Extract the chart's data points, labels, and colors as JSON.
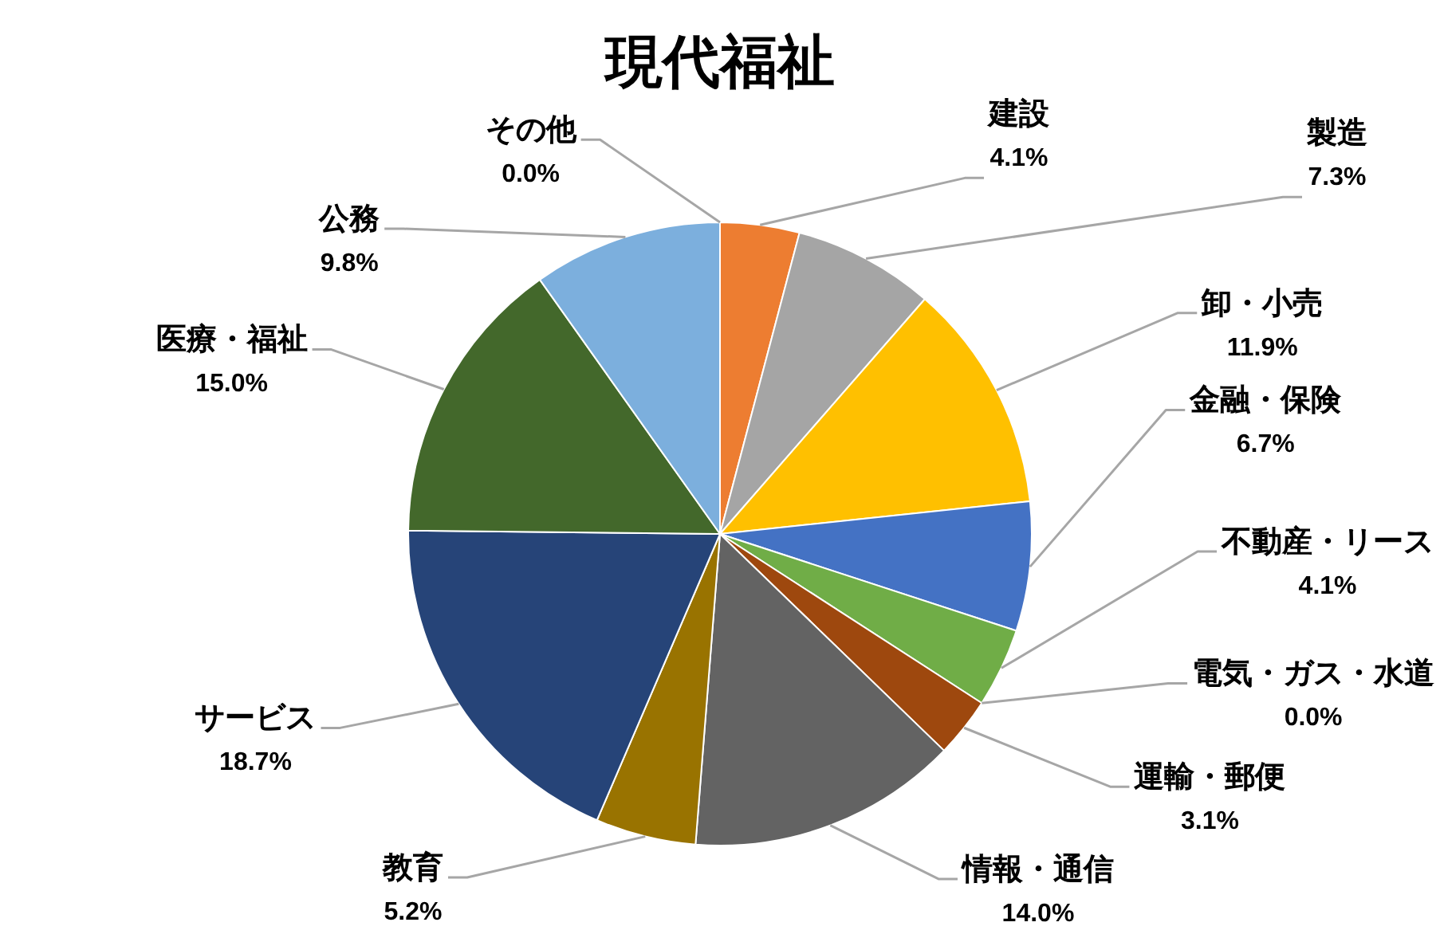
{
  "chart_data": {
    "type": "pie",
    "title": "現代福祉",
    "categories": [
      "建設",
      "製造",
      "卸・小売",
      "金融・保険",
      "不動産・リース",
      "電気・ガス・水道",
      "運輸・郵便",
      "情報・通信",
      "教育",
      "サービス",
      "医療・福祉",
      "公務",
      "その他"
    ],
    "values": [
      4.1,
      7.3,
      11.9,
      6.7,
      4.1,
      0.0,
      3.1,
      14.0,
      5.2,
      18.7,
      15.0,
      9.8,
      0.0
    ],
    "colors": [
      "#ed7d31",
      "#a5a5a5",
      "#ffc000",
      "#4472c4",
      "#70ad47",
      "#255e91",
      "#9e480e",
      "#636363",
      "#997300",
      "#264478",
      "#43682b",
      "#7cafdd",
      "#f1975a"
    ],
    "value_labels": [
      "4.1%",
      "7.3%",
      "11.9%",
      "6.7%",
      "4.1%",
      "0.0%",
      "3.1%",
      "14.0%",
      "5.2%",
      "18.7%",
      "15.0%",
      "9.8%",
      "0.0%"
    ]
  }
}
